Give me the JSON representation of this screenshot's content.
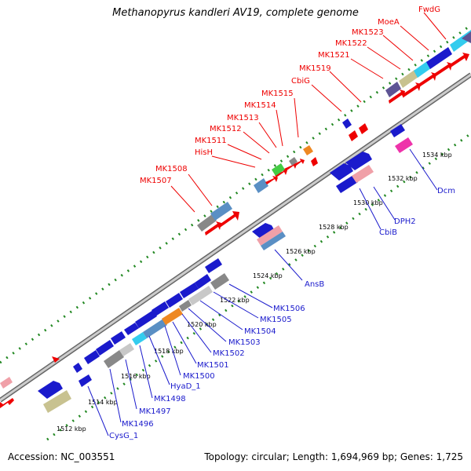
{
  "title": "Methanopyrus kandleri AV19, complete genome",
  "footer": {
    "accession": "Accession: NC_003551",
    "summary": "Topology: circular; Length: 1,694,969 bp; Genes: 1,725"
  },
  "colors": {
    "forward_strand": "#ee0000",
    "reverse_strand": "#1a1acc",
    "backbone": "#999999",
    "tick": "#228822",
    "gene_colors": [
      "#ee0000",
      "#1a1acc",
      "#5a8fc4",
      "#888888",
      "#5e5494",
      "#c8c290",
      "#33ccee",
      "#ee8822",
      "#44cc44",
      "#ee33aa",
      "#f0a0a8",
      "#c8c8c8"
    ]
  },
  "ticks": [
    "1512 kbp",
    "1514 kbp",
    "1516 kbp",
    "1518 kbp",
    "1520 kbp",
    "1522 kbp",
    "1524 kbp",
    "1526 kbp",
    "1528 kbp",
    "1530 kbp",
    "1532 kbp",
    "1534 kbp"
  ],
  "top_labels": [
    "FwdG",
    "MoeA",
    "MK1523",
    "MK1522",
    "MK1521",
    "MK1519",
    "CbiG",
    "MK1515",
    "MK1514",
    "MK1513",
    "MK1512",
    "MK1511",
    "HisH",
    "MK1508",
    "MK1507"
  ],
  "bottom_labels": [
    "MK1506",
    "MK1505",
    "MK1504",
    "MK1503",
    "MK1502",
    "MK1501",
    "MK1500",
    "HyaD_1",
    "MK1498",
    "MK1497",
    "MK1496",
    "CysG_1",
    "AnsB",
    "DPH2",
    "CbiB",
    "Dcm"
  ]
}
